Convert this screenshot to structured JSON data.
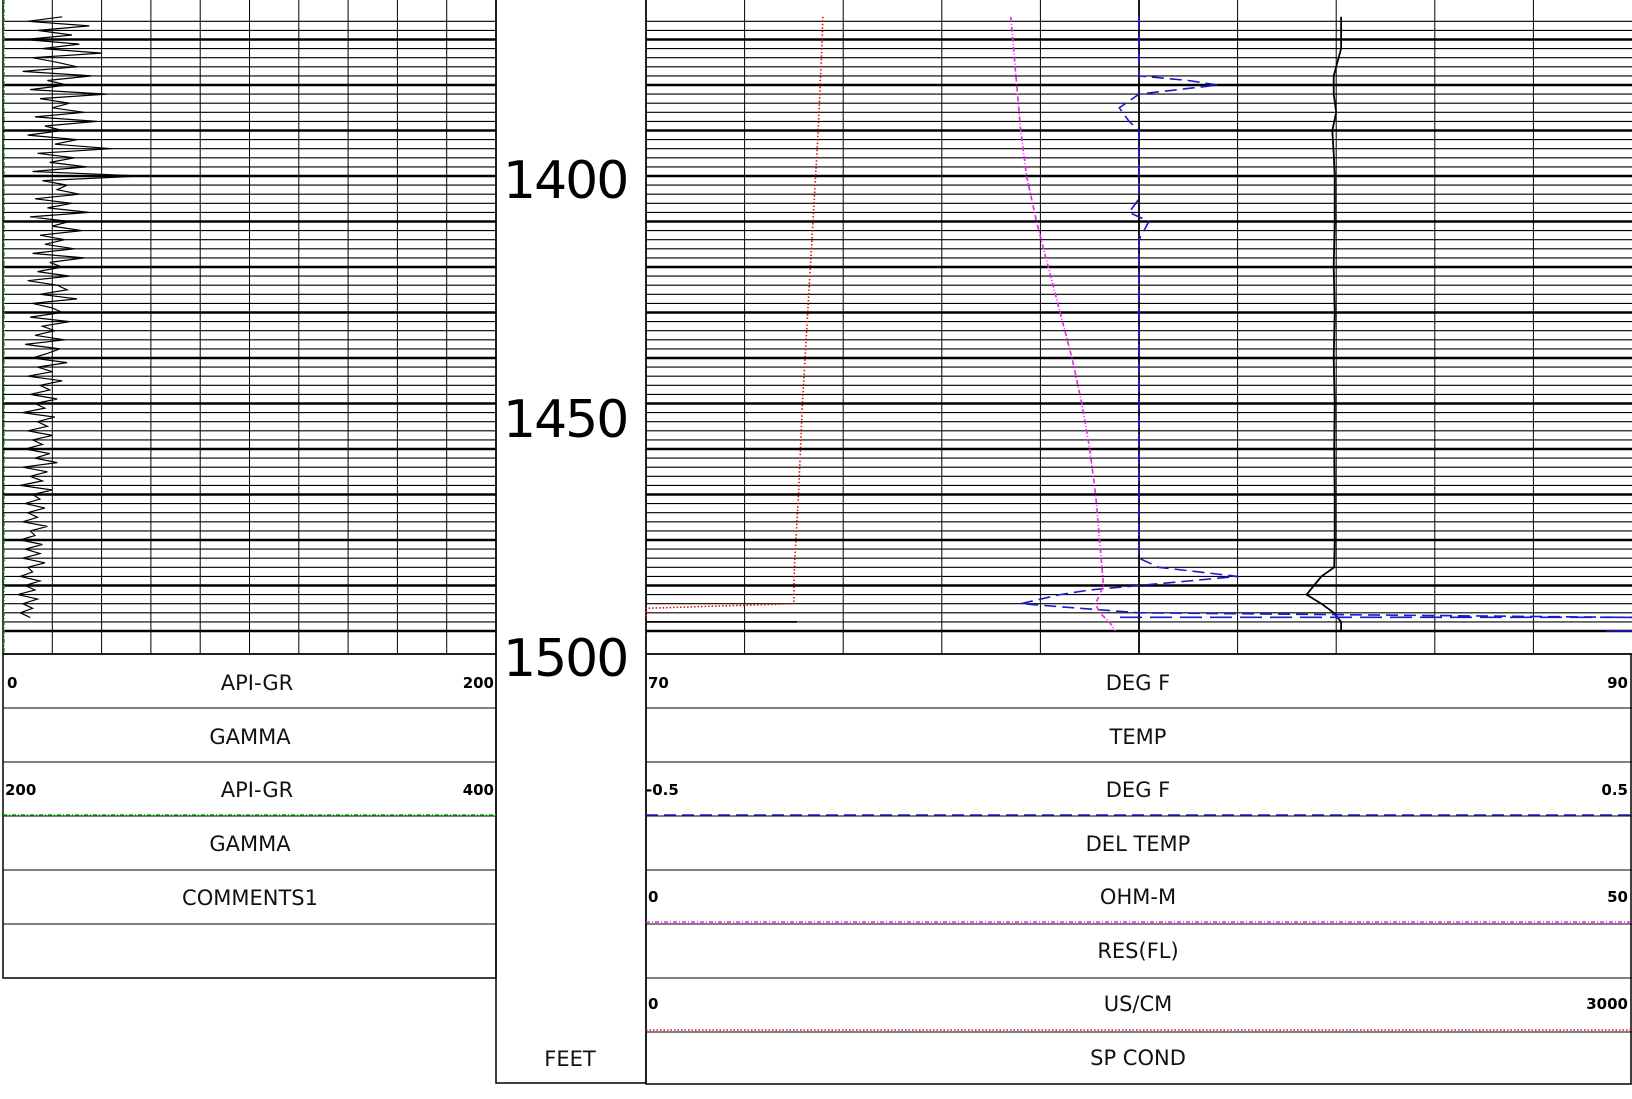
{
  "chart_data": {
    "type": "line",
    "depth_unit": "FEET",
    "depth_labels": [
      "1400",
      "1450",
      "1500"
    ],
    "depth_label_values": [
      1400,
      1450,
      1500
    ],
    "depth_range": [
      1365,
      1500
    ],
    "left_track": {
      "series": [
        {
          "key": "gamma_a",
          "scale_min": "0",
          "unit": "API-GR",
          "scale_max": "200",
          "name": "GAMMA",
          "min": 0,
          "max": 200,
          "color": "#000000",
          "dash": "solid"
        },
        {
          "key": "gamma_b",
          "scale_min": "200",
          "unit": "API-GR",
          "scale_max": "400",
          "name": "GAMMA",
          "min": 200,
          "max": 400,
          "color": "#00aa00",
          "dash": "dashdot"
        }
      ],
      "comments": "COMMENTS1"
    },
    "right_track": {
      "series": [
        {
          "key": "temp",
          "scale_min": "70",
          "unit": "DEG F",
          "scale_max": "90",
          "name": "TEMP",
          "min": 70,
          "max": 90,
          "color": "#000000",
          "dash": "solid"
        },
        {
          "key": "del_temp",
          "scale_min": "-0.5",
          "unit": "DEG F",
          "scale_max": "0.5",
          "name": "DEL TEMP",
          "min": -0.5,
          "max": 0.5,
          "color": "#1a1acc",
          "dash": "dash"
        },
        {
          "key": "res_fl",
          "scale_min": "0",
          "unit": "OHM-M",
          "scale_max": "50",
          "name": "RES(FL)",
          "min": 0,
          "max": 50,
          "color": "#ee22ee",
          "dash": "dashdot"
        },
        {
          "key": "sp_cond",
          "scale_min": "0",
          "unit": "US/CM",
          "scale_max": "3000",
          "name": "SP COND",
          "min": 0,
          "max": 3000,
          "color": "#dd1111",
          "dash": "dot"
        }
      ]
    },
    "curves": {
      "gamma_a_depth": [
        1365,
        1366,
        1367,
        1368,
        1369,
        1370,
        1371,
        1372,
        1373,
        1374,
        1375,
        1376,
        1377,
        1378,
        1379,
        1380,
        1381,
        1382,
        1383,
        1384,
        1385,
        1386,
        1387,
        1388,
        1389,
        1390,
        1391,
        1392,
        1393,
        1394,
        1395,
        1396,
        1397,
        1398,
        1399,
        1400,
        1401,
        1402,
        1403,
        1404,
        1405,
        1406,
        1407,
        1408,
        1409,
        1410,
        1411,
        1412,
        1413,
        1414,
        1415,
        1416,
        1417,
        1418,
        1419,
        1420,
        1421,
        1422,
        1423,
        1424,
        1425,
        1426,
        1427,
        1428,
        1429,
        1430,
        1431,
        1432,
        1433,
        1434,
        1435,
        1436,
        1437,
        1438,
        1439,
        1440,
        1441,
        1442,
        1443,
        1444,
        1445,
        1446,
        1447,
        1448,
        1449,
        1450,
        1451,
        1452,
        1453,
        1454,
        1455,
        1456,
        1457,
        1458,
        1459,
        1460,
        1461,
        1462,
        1463,
        1464,
        1465,
        1466,
        1467,
        1468,
        1469,
        1470,
        1471,
        1472,
        1473,
        1474,
        1475,
        1476,
        1477,
        1478,
        1479,
        1480,
        1481,
        1482,
        1483,
        1484,
        1485,
        1486,
        1487,
        1488,
        1489,
        1490,
        1491,
        1492,
        1493,
        1494,
        1495,
        1496,
        1497
      ],
      "gamma_a_value": [
        24,
        10,
        35,
        14,
        28,
        9,
        31,
        16,
        40,
        12,
        22,
        30,
        8,
        36,
        18,
        26,
        11,
        42,
        15,
        27,
        20,
        33,
        13,
        38,
        17,
        24,
        10,
        30,
        21,
        44,
        14,
        29,
        19,
        34,
        12,
        56,
        16,
        26,
        22,
        31,
        13,
        28,
        18,
        35,
        11,
        27,
        20,
        32,
        15,
        25,
        17,
        29,
        12,
        33,
        19,
        24,
        14,
        27,
        10,
        22,
        26,
        15,
        30,
        12,
        20,
        24,
        11,
        27,
        16,
        21,
        13,
        25,
        9,
        23,
        18,
        12,
        26,
        14,
        20,
        10,
        24,
        15,
        19,
        11,
        22,
        13,
        17,
        8,
        21,
        14,
        18,
        10,
        20,
        12,
        16,
        9,
        19,
        13,
        22,
        8,
        18,
        11,
        16,
        7,
        20,
        12,
        15,
        9,
        17,
        10,
        14,
        8,
        18,
        11,
        13,
        7,
        16,
        9,
        15,
        8,
        17,
        10,
        12,
        7,
        15,
        9,
        13,
        6,
        14,
        8,
        12,
        7,
        11
      ],
      "temp_depth": [
        1365,
        1372,
        1376,
        1378,
        1382,
        1386,
        1390,
        1395,
        1400,
        1410,
        1420,
        1430,
        1440,
        1450,
        1460,
        1470,
        1480,
        1486,
        1488,
        1490,
        1492,
        1494,
        1496,
        1498,
        1500
      ],
      "temp_value": [
        84.1,
        84.1,
        84.0,
        83.95,
        83.95,
        84.0,
        83.92,
        83.95,
        83.97,
        83.97,
        83.95,
        83.97,
        83.95,
        83.97,
        83.96,
        83.97,
        83.97,
        83.96,
        83.7,
        83.55,
        83.4,
        83.7,
        83.95,
        84.1,
        84.1
      ],
      "del_temp_depth": [
        1365,
        1370,
        1375,
        1378,
        1379,
        1380,
        1381,
        1382,
        1385,
        1388,
        1390,
        1393,
        1396,
        1400,
        1405,
        1408,
        1410,
        1414,
        1418,
        1422,
        1426,
        1430,
        1440,
        1450,
        1460,
        1470,
        1480,
        1484,
        1486,
        1488,
        1489,
        1491,
        1492,
        1494,
        1496,
        1497
      ],
      "del_temp_value": [
        0.0,
        0.0,
        0.0,
        0.0,
        0.05,
        0.08,
        0.04,
        0.0,
        -0.02,
        -0.01,
        0.0,
        0.0,
        0.0,
        0.0,
        0.0,
        -0.01,
        0.01,
        0.0,
        0.0,
        0.0,
        0.0,
        0.0,
        0.0,
        0.0,
        0.0,
        0.0,
        0.0,
        0.0,
        0.02,
        0.1,
        0.05,
        -0.05,
        -0.08,
        -0.12,
        0.0,
        0.5
      ],
      "res_fl_depth": [
        1365,
        1370,
        1380,
        1390,
        1400,
        1410,
        1420,
        1430,
        1440,
        1450,
        1460,
        1470,
        1480,
        1485,
        1490,
        1492,
        1494,
        1496,
        1498,
        1500
      ],
      "res_fl_value": [
        18.5,
        18.6,
        18.8,
        19.0,
        19.3,
        19.8,
        20.4,
        21.0,
        21.6,
        22.1,
        22.5,
        22.8,
        23.0,
        23.1,
        23.2,
        23.0,
        22.8,
        23.0,
        23.5,
        23.8
      ],
      "sp_cond_depth": [
        1365,
        1370,
        1380,
        1390,
        1400,
        1410,
        1420,
        1430,
        1440,
        1450,
        1460,
        1470,
        1480,
        1485,
        1490,
        1494,
        1495,
        1497
      ],
      "sp_cond_value": [
        538,
        536,
        530,
        524,
        516,
        508,
        500,
        492,
        484,
        476,
        470,
        464,
        456,
        452,
        450,
        450,
        0,
        0
      ]
    }
  }
}
